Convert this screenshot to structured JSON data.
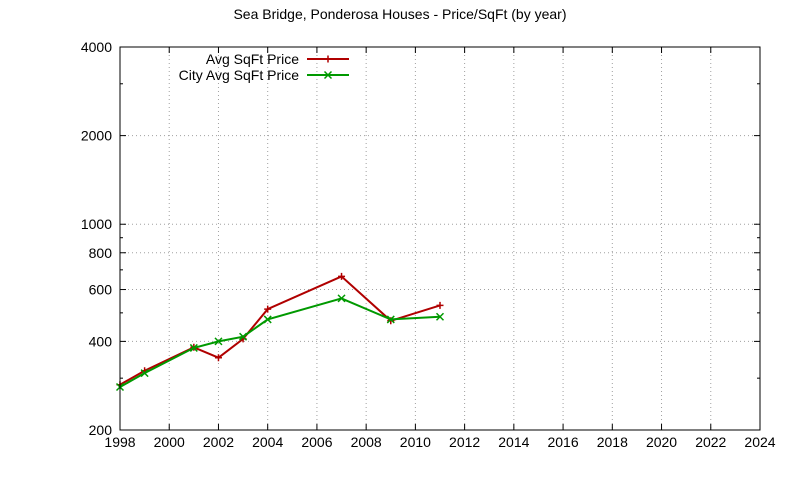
{
  "chart_data": {
    "type": "line",
    "title": "Sea Bridge, Ponderosa Houses - Price/SqFt (by year)",
    "xlabel": "",
    "ylabel": "",
    "xlim": [
      1998,
      2024
    ],
    "ylim": [
      200,
      4000
    ],
    "yscale": "log",
    "grid": true,
    "legend_position": "top-left",
    "x_ticks": [
      "1998",
      "2000",
      "2002",
      "2004",
      "2006",
      "2008",
      "2010",
      "2012",
      "2014",
      "2016",
      "2018",
      "2020",
      "2022",
      "2024"
    ],
    "y_ticks": [
      {
        "value": 200,
        "label": "200"
      },
      {
        "value": 400,
        "label": "400"
      },
      {
        "value": 600,
        "label": "600"
      },
      {
        "value": 800,
        "label": "800"
      },
      {
        "value": 1000,
        "label": "1000"
      },
      {
        "value": 2000,
        "label": "2000"
      },
      {
        "value": 4000,
        "label": "4000"
      }
    ],
    "series": [
      {
        "name": "Avg SqFt Price",
        "color": "#b00000",
        "marker": "plus",
        "x": [
          1998,
          1999,
          2001,
          2002,
          2003,
          2004,
          2007,
          2009,
          2011
        ],
        "y": [
          285,
          318,
          382,
          352,
          408,
          515,
          665,
          470,
          530
        ]
      },
      {
        "name": "City Avg SqFt Price",
        "color": "#009900",
        "marker": "cross",
        "x": [
          1998,
          1999,
          2001,
          2002,
          2003,
          2004,
          2007,
          2009,
          2011
        ],
        "y": [
          280,
          312,
          380,
          400,
          415,
          475,
          560,
          475,
          485
        ]
      }
    ]
  }
}
